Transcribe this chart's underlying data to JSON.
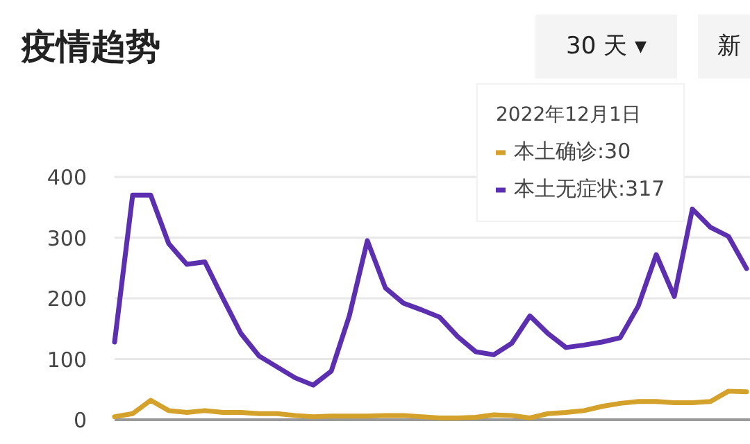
{
  "chart_data": {
    "type": "line",
    "title": "疫情趋势",
    "categories": [
      null,
      null,
      null,
      null,
      null,
      null,
      null,
      null,
      null,
      null,
      null,
      null,
      null,
      null,
      null,
      null,
      null,
      null,
      null,
      null,
      null,
      null,
      null,
      null,
      null,
      null,
      null,
      null,
      null,
      null,
      null,
      null,
      null,
      null,
      null,
      null
    ],
    "series": [
      {
        "name": "本土确诊:30",
        "color": "#d4a12a",
        "values": [
          5,
          10,
          32,
          15,
          12,
          15,
          12,
          12,
          10,
          10,
          7,
          5,
          6,
          6,
          6,
          7,
          7,
          5,
          3,
          3,
          4,
          8,
          7,
          3,
          10,
          12,
          15,
          22,
          27,
          30,
          30,
          28,
          28,
          30,
          47,
          46
        ]
      },
      {
        "name": "本土无症状:317",
        "color": "#5b2fb0",
        "values": [
          128,
          370,
          370,
          290,
          256,
          260,
          200,
          142,
          105,
          87,
          69,
          57,
          80,
          171,
          295,
          217,
          192,
          181,
          169,
          137,
          112,
          107,
          126,
          171,
          142,
          119,
          123,
          128,
          135,
          187,
          272,
          203,
          347,
          317,
          302,
          249
        ]
      }
    ],
    "ylim": [
      0,
      400
    ],
    "yticks": [
      0,
      100,
      200,
      300,
      400
    ],
    "grid": "y",
    "tick_labels": "y",
    "legend": "top right",
    "annotations": [
      "30 天 ▾",
      "新",
      "2022年12月1日"
    ]
  }
}
